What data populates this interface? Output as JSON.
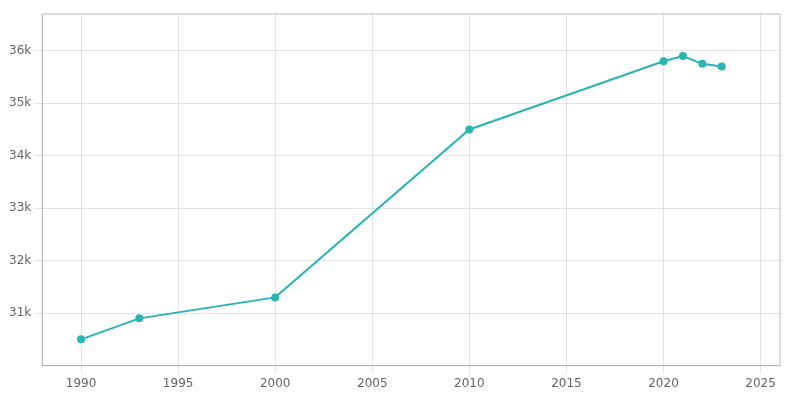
{
  "chart_data": {
    "type": "line",
    "x": [
      1990,
      1993,
      2000,
      2010,
      2020,
      2021,
      2022,
      2023
    ],
    "values": [
      30500,
      30900,
      31300,
      34500,
      35800,
      35900,
      35750,
      35700
    ],
    "color": "#2ab5b5",
    "marker": "circle",
    "xlim": [
      1988,
      2026
    ],
    "xticks": [
      1990,
      1995,
      2000,
      2005,
      2010,
      2015,
      2020,
      2025
    ],
    "ylim": [
      30000,
      36700
    ],
    "yticks": [
      {
        "value": 31000,
        "label": "31k"
      },
      {
        "value": 32000,
        "label": "32k"
      },
      {
        "value": 33000,
        "label": "33k"
      },
      {
        "value": 34000,
        "label": "34k"
      },
      {
        "value": 35000,
        "label": "35k"
      },
      {
        "value": 36000,
        "label": "36k"
      }
    ],
    "grid": true
  }
}
